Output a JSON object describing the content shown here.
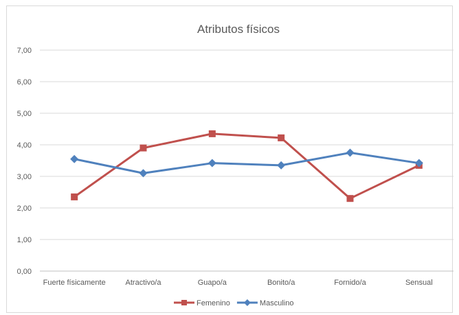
{
  "chart_data": {
    "type": "line",
    "title": "Atributos físicos",
    "xlabel": "",
    "ylabel": "",
    "categories": [
      "Fuerte físicamente",
      "Atractivo/a",
      "Guapo/a",
      "Bonito/a",
      "Fornido/a",
      "Sensual"
    ],
    "ylim": [
      0,
      7
    ],
    "yticks": [
      "0,00",
      "1,00",
      "2,00",
      "3,00",
      "4,00",
      "5,00",
      "6,00",
      "7,00"
    ],
    "grid": true,
    "legend_position": "bottom",
    "series": [
      {
        "name": "Femenino",
        "color": "#c0504d",
        "marker": "square",
        "values": [
          2.35,
          3.9,
          4.35,
          4.22,
          2.3,
          3.35
        ]
      },
      {
        "name": "Masculino",
        "color": "#4f81bd",
        "marker": "diamond",
        "values": [
          3.55,
          3.1,
          3.42,
          3.35,
          3.75,
          3.42
        ]
      }
    ]
  }
}
